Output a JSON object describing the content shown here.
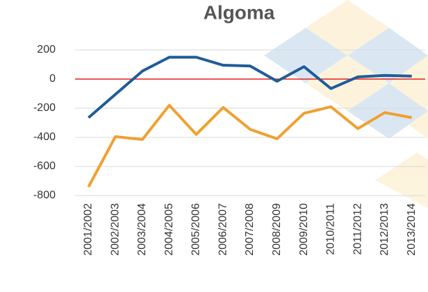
{
  "chart_data": {
    "type": "line",
    "title": "Algoma",
    "categories": [
      "2001/2002",
      "2002/2003",
      "2003/2004",
      "2004/2005",
      "2005/2006",
      "2006/2007",
      "2007/2008",
      "2008/2009",
      "2009/2010",
      "2010/2011",
      "2011/2012",
      "2012/2013",
      "2013/2014"
    ],
    "series": [
      {
        "color": "#1f5c99",
        "values": [
          -265,
          -105,
          55,
          150,
          150,
          95,
          90,
          -15,
          85,
          -65,
          15,
          25,
          20
        ]
      },
      {
        "color": "#f0a030",
        "values": [
          -740,
          -395,
          -415,
          -180,
          -380,
          -195,
          -345,
          -410,
          -235,
          -190,
          -340,
          -230,
          -265
        ]
      }
    ],
    "ylim": [
      -800,
      200
    ],
    "yticks": [
      200,
      0,
      -200,
      -400,
      -600,
      -800
    ],
    "grid": true,
    "zero_line_color": "#e41e1e"
  }
}
